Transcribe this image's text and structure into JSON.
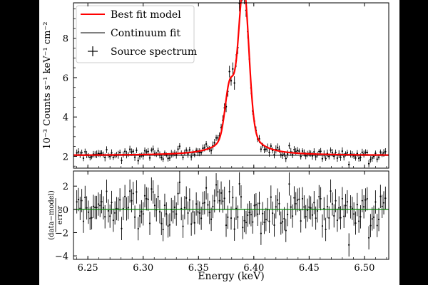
{
  "chart_data": {
    "type": "line",
    "x_ticks": [
      "6.25",
      "6.30",
      "6.35",
      "6.40",
      "6.45",
      "6.50"
    ],
    "xlabel": "Energy (keV)",
    "xlim": [
      6.237,
      6.522
    ],
    "top_panel": {
      "ylabel": "10⁻³ Counts s⁻¹ keV⁻¹ cm⁻²",
      "ylim": [
        1.4,
        9.8
      ],
      "y_ticks": [
        "2",
        "4",
        "6",
        "8"
      ],
      "continuum_level": 2.05,
      "model": {
        "continuum": 2.05,
        "lines": [
          {
            "center": 6.391,
            "sigma": 0.0045,
            "amplitude": 6.6
          },
          {
            "center": 6.378,
            "sigma": 0.004,
            "amplitude": 2.3
          }
        ],
        "lorentz_wing": {
          "center": 6.387,
          "gamma": 0.012,
          "amplitude": 2.2
        }
      },
      "data_sample": {
        "e_start": 6.24,
        "e_end": 6.52,
        "step": 0.0015,
        "y_error": 0.15
      }
    },
    "bottom_panel": {
      "ylabel_numerator": "(data−model)",
      "ylabel_denominator": "error",
      "ylim": [
        -4.3,
        3.3
      ],
      "y_ticks": [
        "2",
        "0",
        "−2",
        "−4"
      ],
      "zero_line": 0
    },
    "legend": {
      "position": "top-left",
      "entries": [
        {
          "label": "Best fit model",
          "color": "#ff0000"
        },
        {
          "label": "Continuum fit",
          "color": "#808080"
        },
        {
          "label": "Source spectrum",
          "color": "#000000"
        }
      ]
    },
    "colors": {
      "model": "#ff0000",
      "continuum": "#808080",
      "data": "#000000",
      "zero_line": "#008000"
    }
  }
}
